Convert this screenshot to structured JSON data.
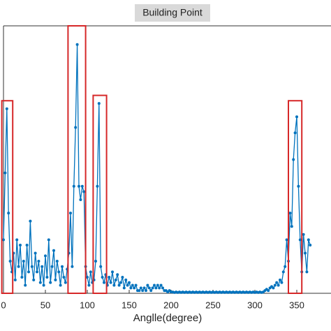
{
  "chart_data": {
    "type": "line",
    "title": "Building Point",
    "xlabel": "Anglle(degree)",
    "xlim": [
      0,
      390
    ],
    "ylim": [
      0,
      100
    ],
    "xticks": [
      0,
      50,
      100,
      150,
      200,
      250,
      300,
      350
    ],
    "series": [
      {
        "name": "Building Point",
        "color": "#0072bd",
        "x": [
          0,
          2,
          4,
          6,
          8,
          10,
          12,
          14,
          16,
          18,
          20,
          22,
          24,
          26,
          28,
          30,
          32,
          34,
          36,
          38,
          40,
          42,
          44,
          46,
          48,
          50,
          52,
          54,
          56,
          58,
          60,
          62,
          64,
          66,
          68,
          70,
          72,
          74,
          76,
          78,
          80,
          82,
          84,
          86,
          88,
          90,
          92,
          94,
          96,
          98,
          100,
          102,
          104,
          106,
          108,
          110,
          112,
          114,
          116,
          118,
          120,
          122,
          124,
          126,
          128,
          130,
          132,
          134,
          136,
          138,
          140,
          142,
          144,
          146,
          148,
          150,
          152,
          154,
          156,
          158,
          160,
          162,
          164,
          166,
          168,
          170,
          172,
          174,
          176,
          178,
          180,
          182,
          184,
          186,
          188,
          190,
          192,
          194,
          196,
          198,
          200,
          202,
          204,
          206,
          208,
          210,
          212,
          214,
          216,
          218,
          220,
          222,
          224,
          226,
          228,
          230,
          232,
          234,
          236,
          238,
          240,
          242,
          244,
          246,
          248,
          250,
          252,
          254,
          256,
          258,
          260,
          262,
          264,
          266,
          268,
          270,
          272,
          274,
          276,
          278,
          280,
          282,
          284,
          286,
          288,
          290,
          292,
          294,
          296,
          298,
          300,
          302,
          304,
          306,
          308,
          310,
          312,
          314,
          316,
          318,
          320,
          322,
          324,
          326,
          328,
          330,
          332,
          334,
          336,
          338,
          340,
          342,
          344,
          346,
          348,
          350,
          352,
          354,
          356,
          358,
          360,
          362,
          364,
          366
        ],
        "values": [
          20,
          45,
          69,
          30,
          12,
          8,
          15,
          5,
          20,
          10,
          18,
          6,
          12,
          3,
          18,
          8,
          27,
          10,
          5,
          15,
          8,
          12,
          4,
          10,
          3,
          14,
          6,
          20,
          4,
          10,
          16,
          5,
          12,
          8,
          3,
          10,
          6,
          4,
          9,
          15,
          30,
          10,
          40,
          62,
          93,
          40,
          35,
          40,
          38,
          10,
          6,
          3,
          8,
          4,
          5,
          12,
          40,
          71,
          10,
          6,
          4,
          7,
          3,
          6,
          4,
          8,
          3,
          5,
          7,
          3,
          4,
          6,
          2,
          5,
          3,
          4,
          2,
          3,
          2,
          3,
          1,
          1,
          2,
          1,
          2,
          1,
          3,
          2,
          1,
          2,
          3,
          2,
          3,
          2,
          3,
          2,
          1,
          1,
          0.5,
          1,
          0.5,
          0.5,
          0.3,
          0.5,
          0.3,
          0.5,
          0.3,
          0.5,
          0.3,
          0.5,
          0.3,
          0.5,
          0.3,
          0.5,
          0.3,
          0.5,
          0.3,
          0.5,
          0.3,
          0.5,
          0.3,
          0.5,
          0.3,
          0.5,
          0.3,
          0.5,
          0.3,
          0.5,
          0.3,
          0.5,
          0.3,
          0.5,
          0.3,
          0.5,
          0.3,
          0.5,
          0.3,
          0.5,
          0.3,
          0.5,
          0.3,
          0.5,
          0.3,
          0.5,
          0.3,
          0.5,
          0.3,
          0.5,
          0.3,
          0.5,
          0.3,
          0.5,
          0.3,
          0.5,
          0.3,
          0.5,
          1,
          1.5,
          1,
          2,
          2.5,
          2,
          3,
          4,
          3,
          5,
          4,
          8,
          10,
          20,
          12,
          30,
          25,
          50,
          60,
          66,
          40,
          20,
          8,
          22,
          15,
          8,
          20,
          18
        ]
      }
    ],
    "highlights": [
      {
        "color": "#d62728",
        "x": [
          -2,
          11
        ],
        "y": [
          0,
          72
        ]
      },
      {
        "color": "#d62728",
        "x": [
          77,
          98
        ],
        "y": [
          0,
          100
        ]
      },
      {
        "color": "#d62728",
        "x": [
          107,
          123
        ],
        "y": [
          0,
          74
        ]
      },
      {
        "color": "#d62728",
        "x": [
          340,
          356
        ],
        "y": [
          0,
          72
        ]
      }
    ]
  }
}
